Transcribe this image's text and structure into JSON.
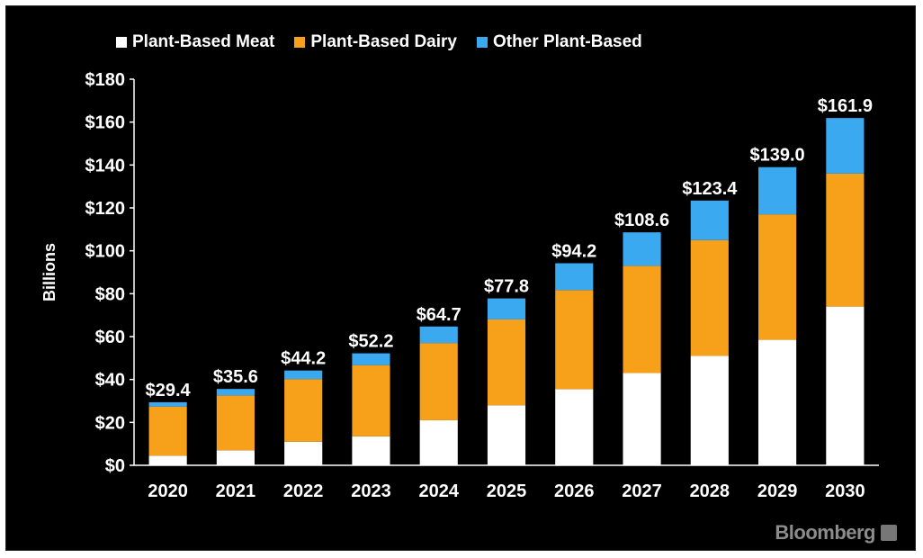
{
  "brand": "Bloomberg",
  "chart_data": {
    "type": "bar",
    "stacked": true,
    "title": "",
    "xlabel": "",
    "ylabel": "Billions",
    "ylim": [
      0,
      180
    ],
    "yticks": [
      "$0",
      "$20",
      "$40",
      "$60",
      "$80",
      "$100",
      "$120",
      "$140",
      "$160",
      "$180"
    ],
    "ytick_values": [
      0,
      20,
      40,
      60,
      80,
      100,
      120,
      140,
      160,
      180
    ],
    "grid": false,
    "legend_position": "top-left",
    "categories": [
      "2020",
      "2021",
      "2022",
      "2023",
      "2024",
      "2025",
      "2026",
      "2027",
      "2028",
      "2029",
      "2030"
    ],
    "series": [
      {
        "name": "Plant-Based Meat",
        "color": "#ffffff",
        "values": [
          4.5,
          7,
          11,
          13.5,
          21,
          28,
          35.5,
          43,
          51,
          58.5,
          74
        ]
      },
      {
        "name": "Plant-Based Dairy",
        "color": "#f7a11a",
        "values": [
          22.9,
          25.6,
          29.2,
          33.2,
          36,
          40,
          46.2,
          50,
          54,
          58.5,
          62
        ]
      },
      {
        "name": "Other Plant-Based",
        "color": "#3aa9f0",
        "values": [
          2,
          3,
          4,
          5.5,
          7.7,
          9.8,
          12.5,
          15.6,
          18.4,
          22,
          25.9
        ]
      }
    ],
    "totals_labels": [
      "$29.4",
      "$35.6",
      "$44.2",
      "$52.2",
      "$64.7",
      "$77.8",
      "$94.2",
      "$108.6",
      "$123.4",
      "$139.0",
      "$161.9"
    ],
    "totals": [
      29.4,
      35.6,
      44.2,
      52.2,
      64.7,
      77.8,
      94.2,
      108.6,
      123.4,
      139.0,
      161.9
    ]
  }
}
